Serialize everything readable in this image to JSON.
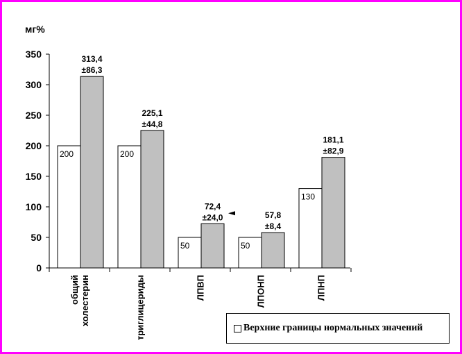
{
  "chart_data": {
    "type": "bar",
    "ylabel": "мг%",
    "ylim": [
      0,
      350
    ],
    "yticks": [
      0,
      50,
      100,
      150,
      200,
      250,
      300,
      350
    ],
    "categories": [
      [
        "общий",
        "холестерин"
      ],
      [
        "триглицериды"
      ],
      [
        "ЛПВП"
      ],
      [
        "ЛПОНП"
      ],
      [
        "ЛПНП"
      ]
    ],
    "series": [
      {
        "name": "Верхние границы нормальных значений",
        "values": [
          200,
          200,
          50,
          50,
          130
        ],
        "labels": [
          "200",
          "200",
          "50",
          "50",
          "130"
        ],
        "color": "#ffffff"
      },
      {
        "values": [
          313.4,
          225.1,
          72.4,
          57.8,
          181.1
        ],
        "labels": [
          [
            "313,4",
            "±86,3"
          ],
          [
            "225,1",
            "±44,8"
          ],
          [
            "72,4",
            "±24,0"
          ],
          [
            "57,8",
            "±8,4"
          ],
          [
            "181,1",
            "±82,9"
          ]
        ],
        "color": "#c0c0c0"
      }
    ],
    "legend": {
      "position": "bottom-right",
      "entries": [
        "Верхние границы нормальных значений"
      ]
    },
    "grid": false
  },
  "colors": {
    "frame": "#ff00ff",
    "normal_bar": "#ffffff",
    "patient_bar": "#c0c0c0"
  }
}
